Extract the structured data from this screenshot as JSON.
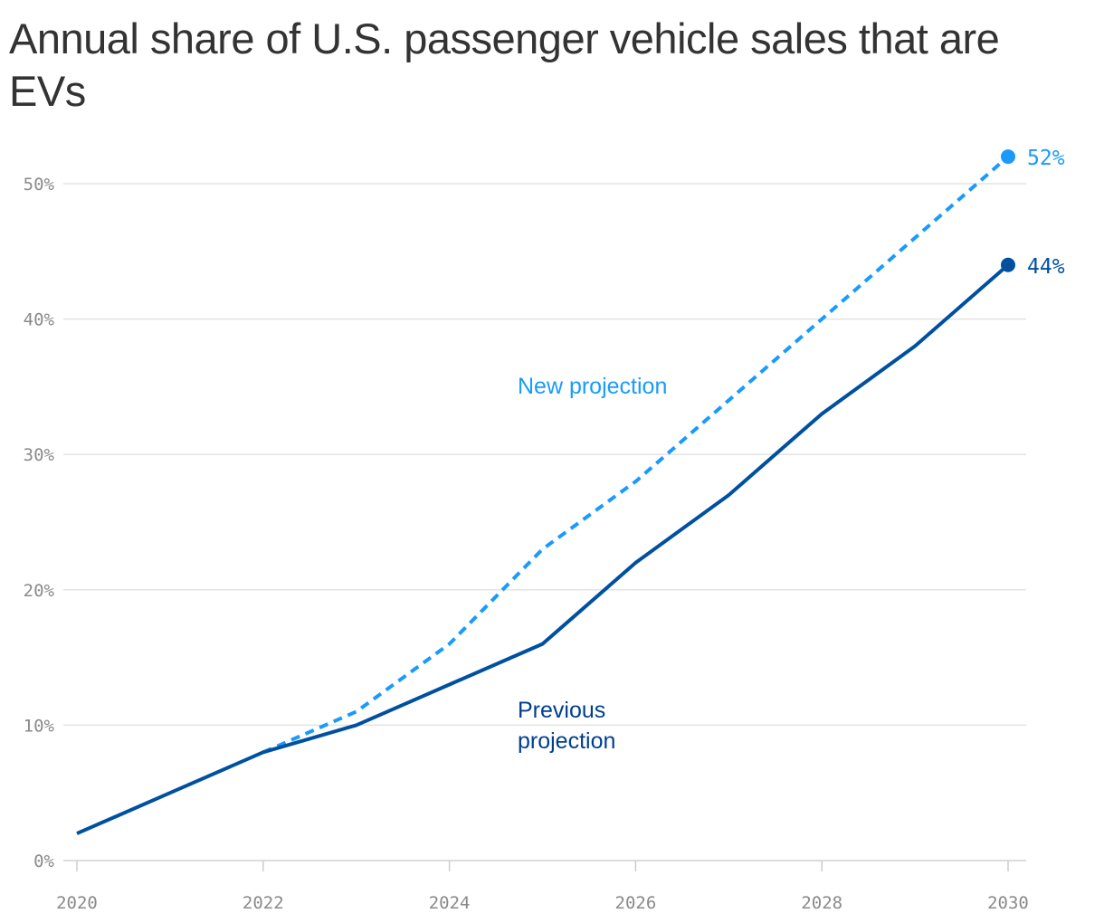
{
  "chart_data": {
    "type": "line",
    "title": "Annual share of U.S. passenger vehicle sales that are EVs",
    "x": [
      2020,
      2021,
      2022,
      2023,
      2024,
      2025,
      2026,
      2027,
      2028,
      2029,
      2030
    ],
    "xticks": [
      "2020",
      "2022",
      "2024",
      "2026",
      "2028",
      "2030"
    ],
    "yticks": [
      "0%",
      "10%",
      "20%",
      "30%",
      "40%",
      "50%"
    ],
    "ylim": [
      0,
      50
    ],
    "xlim": [
      2020,
      2030
    ],
    "grid": "horizontal",
    "series": [
      {
        "name": "Previous projection",
        "label_lines": [
          "Previous",
          "projection"
        ],
        "style": "solid",
        "color": "#0050a0",
        "values": [
          2,
          5,
          8,
          10,
          13,
          16,
          22,
          27,
          33,
          38,
          44
        ],
        "end_label": "44%"
      },
      {
        "name": "New projection",
        "label_lines": [
          "New projection"
        ],
        "style": "dashed",
        "color": "#1a9bfc",
        "values": [
          null,
          null,
          8,
          11,
          16,
          23,
          28,
          34,
          40,
          46,
          52
        ],
        "end_label": "52%"
      }
    ]
  }
}
